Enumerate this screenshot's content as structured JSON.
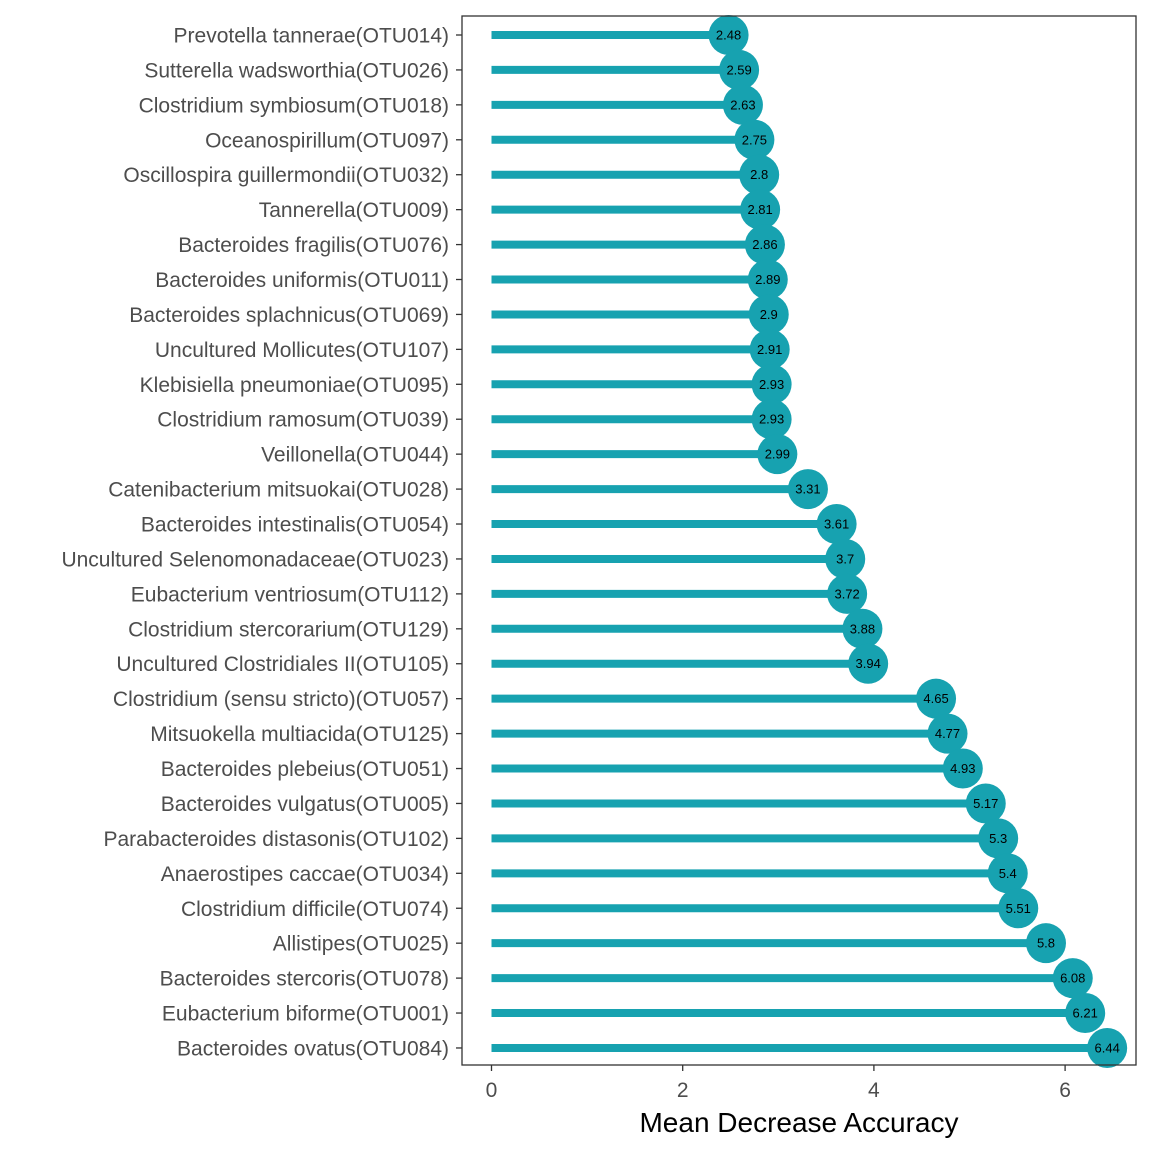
{
  "chart_data": {
    "type": "lollipop",
    "title": "",
    "xlabel": "Mean Decrease Accuracy",
    "ylabel": "",
    "xlim": [
      -0.3,
      6.75
    ],
    "xticks": [
      0,
      2,
      4,
      6
    ],
    "grid": false,
    "color": "#17a2b0",
    "categories": [
      "Prevotella tannerae(OTU014)",
      "Sutterella wadsworthia(OTU026)",
      "Clostridium symbiosum(OTU018)",
      "Oceanospirillum(OTU097)",
      "Oscillospira guillermondii(OTU032)",
      "Tannerella(OTU009)",
      "Bacteroides fragilis(OTU076)",
      "Bacteroides uniformis(OTU011)",
      "Bacteroides splachnicus(OTU069)",
      "Uncultured Mollicutes(OTU107)",
      "Klebisiella pneumoniae(OTU095)",
      "Clostridium ramosum(OTU039)",
      "Veillonella(OTU044)",
      "Catenibacterium mitsuokai(OTU028)",
      "Bacteroides intestinalis(OTU054)",
      "Uncultured Selenomonadaceae(OTU023)",
      "Eubacterium ventriosum(OTU112)",
      "Clostridium stercorarium(OTU129)",
      "Uncultured Clostridiales II(OTU105)",
      "Clostridium (sensu stricto)(OTU057)",
      "Mitsuokella multiacida(OTU125)",
      "Bacteroides plebeius(OTU051)",
      "Bacteroides vulgatus(OTU005)",
      "Parabacteroides distasonis(OTU102)",
      "Anaerostipes caccae(OTU034)",
      "Clostridium difficile(OTU074)",
      "Allistipes(OTU025)",
      "Bacteroides stercoris(OTU078)",
      "Eubacterium biforme(OTU001)",
      "Bacteroides ovatus(OTU084)"
    ],
    "values": [
      2.48,
      2.59,
      2.63,
      2.75,
      2.8,
      2.81,
      2.86,
      2.89,
      2.9,
      2.91,
      2.93,
      2.93,
      2.99,
      3.31,
      3.61,
      3.7,
      3.72,
      3.88,
      3.94,
      4.65,
      4.77,
      4.93,
      5.17,
      5.3,
      5.4,
      5.51,
      5.8,
      6.08,
      6.21,
      6.44
    ],
    "value_labels": [
      "2.48",
      "2.59",
      "2.63",
      "2.75",
      "2.8",
      "2.81",
      "2.86",
      "2.89",
      "2.9",
      "2.91",
      "2.93",
      "2.93",
      "2.99",
      "3.31",
      "3.61",
      "3.7",
      "3.72",
      "3.88",
      "3.94",
      "4.65",
      "4.77",
      "4.93",
      "5.17",
      "5.3",
      "5.4",
      "5.51",
      "5.8",
      "6.08",
      "6.21",
      "6.44"
    ],
    "tick_labels": [
      "0",
      "2",
      "4",
      "6"
    ]
  }
}
